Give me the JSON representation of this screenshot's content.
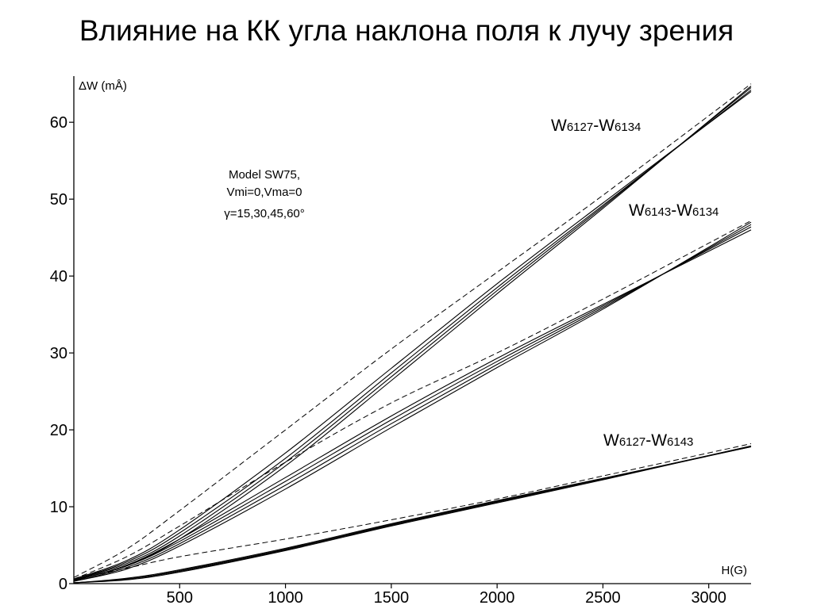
{
  "title": "Влияние на КК угла наклона поля к лучу зрения",
  "chart_data": {
    "type": "line",
    "xlabel": "H(G)",
    "ylabel": "ΔW (mÅ)",
    "xlim": [
      0,
      3200
    ],
    "ylim": [
      0,
      66
    ],
    "x_ticks": [
      500,
      1000,
      1500,
      2000,
      2500,
      3000
    ],
    "y_ticks": [
      0,
      10,
      20,
      30,
      40,
      50,
      60
    ],
    "grid": false,
    "annotation": [
      "Model SW75,",
      "Vmi=0,Vma=0",
      "γ=15,30,45,60°"
    ],
    "series_labels": [
      {
        "main": "W",
        "sub1": "6127",
        "dash": "-W",
        "sub2": "6134"
      },
      {
        "main": "W",
        "sub1": "6143",
        "dash": "-W",
        "sub2": "6134"
      },
      {
        "main": "W",
        "sub1": "6127",
        "dash": "-W",
        "sub2": "6143"
      }
    ],
    "series": [
      {
        "group": "W6127-W6134",
        "style": "solid",
        "x": [
          0,
          250,
          500,
          1000,
          1500,
          2000,
          2500,
          3200
        ],
        "y": [
          0.6,
          3.0,
          7.0,
          17.0,
          28.0,
          39.0,
          49.5,
          64.0
        ]
      },
      {
        "group": "W6127-W6134",
        "style": "solid",
        "x": [
          0,
          250,
          500,
          1000,
          1500,
          2000,
          2500,
          3200
        ],
        "y": [
          0.5,
          2.8,
          6.6,
          16.3,
          27.4,
          38.5,
          49.2,
          64.2
        ]
      },
      {
        "group": "W6127-W6134",
        "style": "solid",
        "x": [
          0,
          250,
          500,
          1000,
          1500,
          2000,
          2500,
          3200
        ],
        "y": [
          0.5,
          2.6,
          6.2,
          15.8,
          26.9,
          38.1,
          49.0,
          64.5
        ]
      },
      {
        "group": "W6127-W6134",
        "style": "solid",
        "x": [
          0,
          250,
          500,
          1000,
          1500,
          2000,
          2500,
          3200
        ],
        "y": [
          0.4,
          2.4,
          5.8,
          15.3,
          26.4,
          37.7,
          48.8,
          64.7
        ]
      },
      {
        "group": "W6127-W6134",
        "style": "dashed",
        "x": [
          0,
          250,
          500,
          1000,
          1500,
          2000,
          2500,
          3200
        ],
        "y": [
          0.8,
          4.5,
          9.5,
          20.0,
          30.5,
          40.5,
          50.5,
          65.0
        ]
      },
      {
        "group": "W6143-W6134",
        "style": "solid",
        "x": [
          0,
          250,
          500,
          1000,
          1500,
          2000,
          2500,
          3200
        ],
        "y": [
          0.4,
          2.4,
          5.8,
          13.8,
          21.8,
          29.3,
          36.3,
          46.0
        ]
      },
      {
        "group": "W6143-W6134",
        "style": "solid",
        "x": [
          0,
          250,
          500,
          1000,
          1500,
          2000,
          2500,
          3200
        ],
        "y": [
          0.4,
          2.3,
          5.5,
          13.3,
          21.3,
          28.9,
          36.1,
          46.4
        ]
      },
      {
        "group": "W6143-W6134",
        "style": "solid",
        "x": [
          0,
          250,
          500,
          1000,
          1500,
          2000,
          2500,
          3200
        ],
        "y": [
          0.3,
          2.1,
          5.2,
          12.8,
          20.8,
          28.5,
          35.9,
          46.7
        ]
      },
      {
        "group": "W6143-W6134",
        "style": "solid",
        "x": [
          0,
          250,
          500,
          1000,
          1500,
          2000,
          2500,
          3200
        ],
        "y": [
          0.3,
          1.9,
          4.9,
          12.3,
          20.3,
          28.1,
          35.7,
          47.0
        ]
      },
      {
        "group": "W6143-W6134",
        "style": "dashed",
        "x": [
          0,
          250,
          500,
          1000,
          1500,
          2000,
          2500,
          3200
        ],
        "y": [
          0.6,
          3.5,
          7.5,
          15.8,
          23.5,
          30.0,
          37.0,
          47.2
        ]
      },
      {
        "group": "W6127-W6143",
        "style": "solid",
        "x": [
          0,
          250,
          500,
          1000,
          1500,
          2000,
          2500,
          3200
        ],
        "y": [
          0.1,
          0.7,
          1.8,
          4.6,
          7.8,
          10.8,
          13.7,
          17.8
        ]
      },
      {
        "group": "W6127-W6143",
        "style": "solid",
        "x": [
          0,
          250,
          500,
          1000,
          1500,
          2000,
          2500,
          3200
        ],
        "y": [
          0.1,
          0.6,
          1.7,
          4.5,
          7.7,
          10.7,
          13.6,
          17.8
        ]
      },
      {
        "group": "W6127-W6143",
        "style": "solid",
        "x": [
          0,
          250,
          500,
          1000,
          1500,
          2000,
          2500,
          3200
        ],
        "y": [
          0.1,
          0.6,
          1.6,
          4.4,
          7.6,
          10.6,
          13.6,
          17.9
        ]
      },
      {
        "group": "W6127-W6143",
        "style": "solid",
        "x": [
          0,
          250,
          500,
          1000,
          1500,
          2000,
          2500,
          3200
        ],
        "y": [
          0.1,
          0.5,
          1.5,
          4.3,
          7.5,
          10.5,
          13.5,
          17.9
        ]
      },
      {
        "group": "W6127-W6143",
        "style": "dashed",
        "x": [
          0,
          250,
          500,
          1000,
          1500,
          2000,
          2500,
          3200
        ],
        "y": [
          0.5,
          2.0,
          3.5,
          5.8,
          8.3,
          11.0,
          14.0,
          18.2
        ]
      }
    ]
  }
}
